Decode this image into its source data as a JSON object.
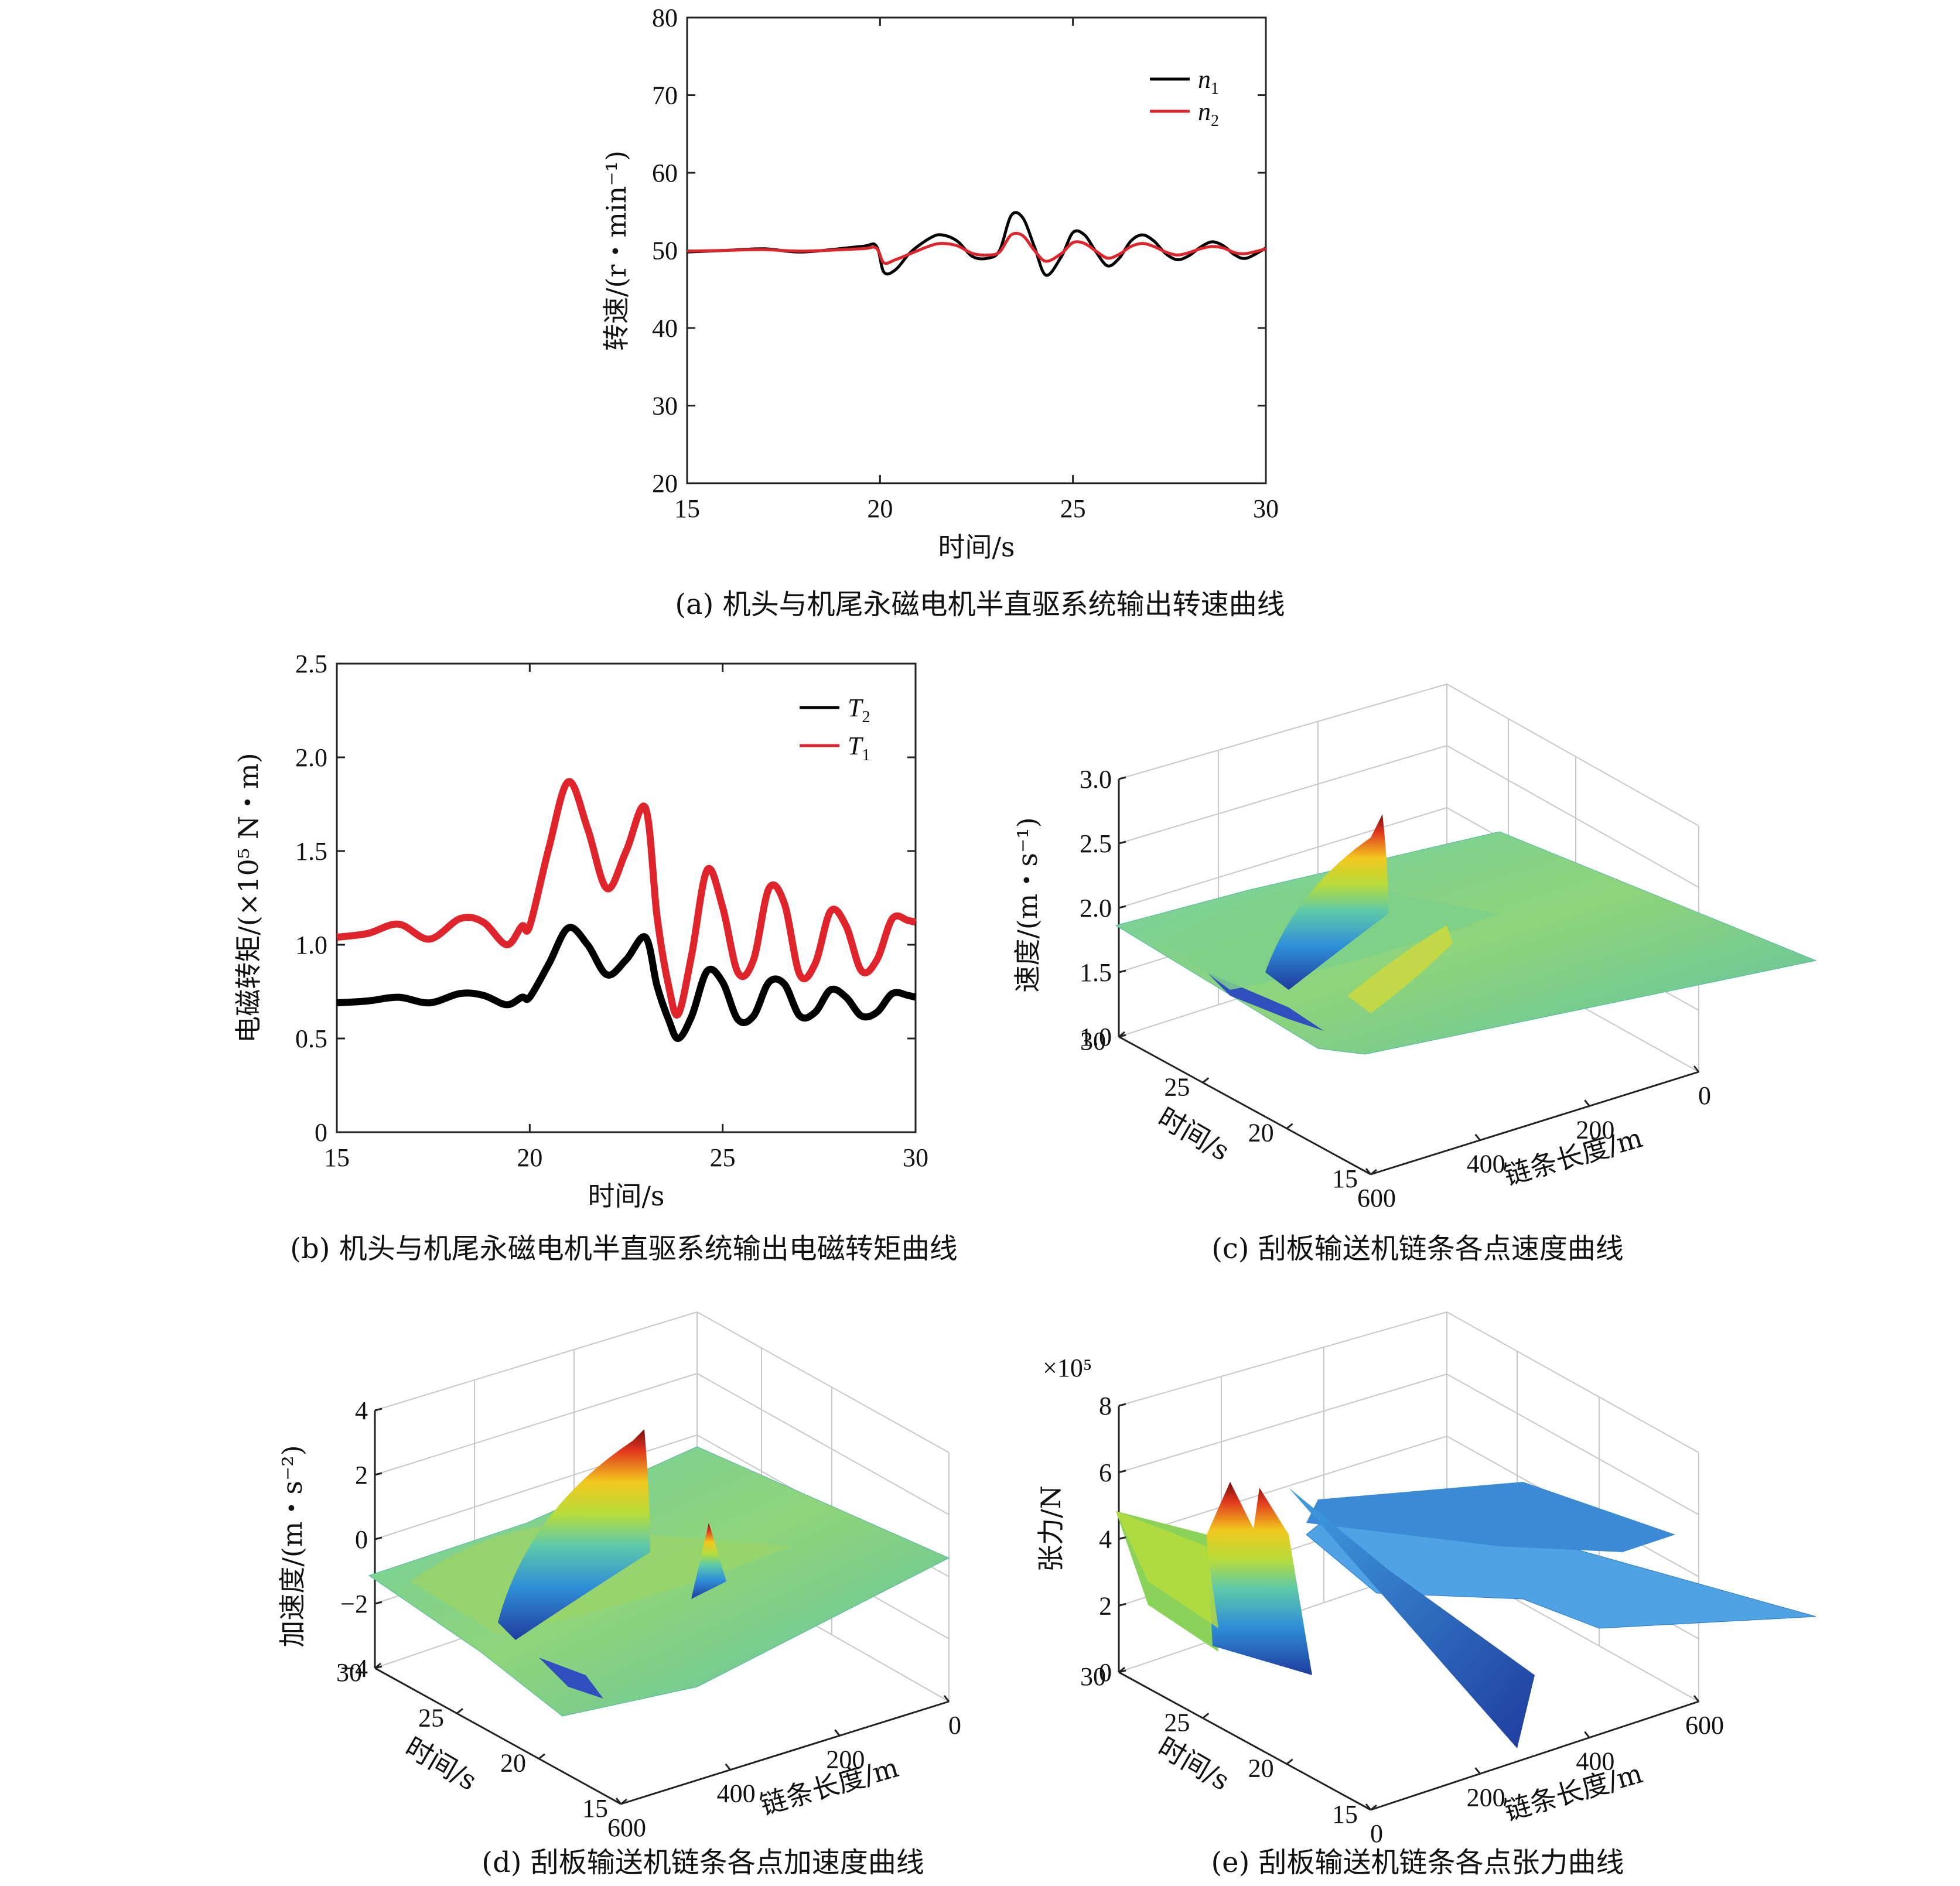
{
  "colors": {
    "black": "#000000",
    "red": "#e0242b",
    "grid": "#d0d0d0",
    "axis": "#222222"
  },
  "chart_data": [
    {
      "id": "a",
      "type": "line",
      "caption": "(a) 机头与机尾永磁电机半直驱系统输出转速曲线",
      "xlabel": "时间/s",
      "ylabel": "转速/(r・min⁻¹)",
      "xlim": [
        15,
        30
      ],
      "ylim": [
        20,
        80
      ],
      "xticks": [
        "15",
        "20",
        "25",
        "30"
      ],
      "yticks": [
        "20",
        "30",
        "40",
        "50",
        "60",
        "70",
        "80"
      ],
      "legend_position": "top-right",
      "legend": [
        {
          "name": "n",
          "sub": "1",
          "color": "#000000"
        },
        {
          "name": "n",
          "sub": "2",
          "color": "#e0242b"
        }
      ],
      "series": [
        {
          "name": "n1",
          "color": "#000000",
          "x": [
            15,
            16,
            17,
            18,
            19.5,
            19.9,
            20.1,
            20.4,
            20.8,
            21.3,
            21.6,
            22.0,
            22.4,
            22.8,
            23.1,
            23.4,
            23.7,
            24.0,
            24.3,
            24.7,
            25.0,
            25.3,
            25.6,
            25.9,
            26.2,
            26.5,
            26.8,
            27.1,
            27.4,
            27.7,
            28.0,
            28.3,
            28.6,
            28.9,
            29.2,
            29.5,
            30
          ],
          "y": [
            49.8,
            50.0,
            50.2,
            49.8,
            50.5,
            50.6,
            47.2,
            47.5,
            49.8,
            51.6,
            52.0,
            51.2,
            49.2,
            49.0,
            50.0,
            54.5,
            54.2,
            50.5,
            46.8,
            49.2,
            52.3,
            52.0,
            49.8,
            48.0,
            49.0,
            51.2,
            52.0,
            51.2,
            49.6,
            48.8,
            49.3,
            50.4,
            51.1,
            50.6,
            49.4,
            49.0,
            50.3
          ]
        },
        {
          "name": "n2",
          "color": "#e0242b",
          "x": [
            15,
            16,
            17,
            18,
            19.5,
            19.9,
            20.1,
            20.4,
            20.8,
            21.3,
            21.6,
            22.0,
            22.4,
            22.8,
            23.1,
            23.4,
            23.7,
            24.0,
            24.3,
            24.7,
            25.0,
            25.3,
            25.6,
            25.9,
            26.2,
            26.5,
            26.8,
            27.1,
            27.4,
            27.7,
            28.0,
            28.3,
            28.6,
            28.9,
            29.2,
            29.5,
            30
          ],
          "y": [
            49.9,
            50.0,
            50.1,
            49.9,
            50.2,
            50.3,
            48.4,
            48.8,
            49.6,
            50.6,
            50.9,
            50.6,
            49.6,
            49.4,
            49.8,
            52.0,
            51.9,
            50.0,
            48.6,
            49.6,
            51.0,
            50.9,
            49.9,
            49.0,
            49.5,
            50.5,
            50.9,
            50.5,
            49.8,
            49.4,
            49.7,
            50.2,
            50.5,
            50.3,
            49.7,
            49.6,
            50.2
          ]
        }
      ]
    },
    {
      "id": "b",
      "type": "line",
      "caption": "(b) 机头与机尾永磁电机半直驱系统输出电磁转矩曲线",
      "xlabel": "时间/s",
      "ylabel": "电磁转矩/(×10⁵ N・m)",
      "xlim": [
        15,
        30
      ],
      "ylim": [
        0,
        2.5
      ],
      "xticks": [
        "15",
        "20",
        "25",
        "30"
      ],
      "yticks": [
        "0",
        "0.5",
        "1.0",
        "1.5",
        "2.0",
        "2.5"
      ],
      "legend_position": "top-right",
      "legend": [
        {
          "name": "T",
          "sub": "2",
          "color": "#000000"
        },
        {
          "name": "T",
          "sub": "1",
          "color": "#e0242b"
        }
      ],
      "series": [
        {
          "name": "T2",
          "color": "#000000",
          "x": [
            15,
            15.8,
            16.6,
            17.4,
            18.2,
            18.8,
            19.4,
            19.8,
            20.0,
            20.5,
            21.0,
            21.5,
            22.0,
            22.5,
            23.0,
            23.3,
            23.6,
            23.85,
            24.2,
            24.6,
            25.0,
            25.4,
            25.8,
            26.2,
            26.6,
            27.0,
            27.4,
            27.8,
            28.2,
            28.6,
            29.0,
            29.4,
            29.8,
            30
          ],
          "y": [
            0.69,
            0.7,
            0.72,
            0.69,
            0.74,
            0.73,
            0.68,
            0.72,
            0.72,
            0.9,
            1.09,
            1.0,
            0.84,
            0.92,
            1.04,
            0.78,
            0.6,
            0.5,
            0.62,
            0.86,
            0.8,
            0.6,
            0.62,
            0.8,
            0.79,
            0.62,
            0.64,
            0.76,
            0.72,
            0.62,
            0.64,
            0.74,
            0.73,
            0.72
          ]
        },
        {
          "name": "T1",
          "color": "#e0242b",
          "x": [
            15,
            15.8,
            16.6,
            17.4,
            18.2,
            18.8,
            19.4,
            19.8,
            20.0,
            20.5,
            21.0,
            21.5,
            22.0,
            22.5,
            23.0,
            23.3,
            23.6,
            23.85,
            24.2,
            24.6,
            25.0,
            25.4,
            25.8,
            26.2,
            26.6,
            27.0,
            27.4,
            27.8,
            28.2,
            28.6,
            29.0,
            29.4,
            29.8,
            30
          ],
          "y": [
            1.04,
            1.06,
            1.11,
            1.03,
            1.14,
            1.12,
            1.0,
            1.1,
            1.1,
            1.52,
            1.87,
            1.62,
            1.3,
            1.5,
            1.73,
            1.15,
            0.78,
            0.63,
            0.95,
            1.4,
            1.2,
            0.85,
            0.92,
            1.3,
            1.22,
            0.84,
            0.9,
            1.18,
            1.1,
            0.86,
            0.92,
            1.14,
            1.13,
            1.12
          ]
        }
      ]
    },
    {
      "id": "c",
      "type": "surface",
      "caption": "(c) 刮板输送机链条各点速度曲线",
      "xlabel": "时间/s",
      "ylabel": "链条长度/m",
      "zlabel": "速度/(m・s⁻¹)",
      "xticks": [
        "30",
        "25",
        "20",
        "15"
      ],
      "yticks": [
        "600",
        "400",
        "200",
        "0"
      ],
      "zticks": [
        "1.0",
        "1.5",
        "2.0",
        "2.5",
        "3.0"
      ],
      "zlim": [
        1.0,
        3.0
      ],
      "peak": 2.6
    },
    {
      "id": "d",
      "type": "surface",
      "caption": "(d) 刮板输送机链条各点加速度曲线",
      "xlabel": "时间/s",
      "ylabel": "链条长度/m",
      "zlabel": "加速度/(m・s⁻²)",
      "xticks": [
        "30",
        "25",
        "20",
        "15"
      ],
      "yticks": [
        "600",
        "400",
        "200",
        "0"
      ],
      "zticks": [
        "−4",
        "−2",
        "0",
        "2",
        "4"
      ],
      "zlim": [
        -4,
        4
      ],
      "peak": 3.0
    },
    {
      "id": "e",
      "type": "surface",
      "caption": "(e) 刮板输送机链条各点张力曲线",
      "xlabel": "时间/s",
      "ylabel": "链条长度/m",
      "zlabel": "张力/N",
      "xticks": [
        "30",
        "25",
        "20",
        "15"
      ],
      "yticks": [
        "0",
        "200",
        "400",
        "600"
      ],
      "zticks": [
        "0",
        "2",
        "4",
        "6",
        "8"
      ],
      "zlim": [
        0,
        8
      ],
      "zscale_label": "×10⁵",
      "peak": 6.0
    }
  ]
}
